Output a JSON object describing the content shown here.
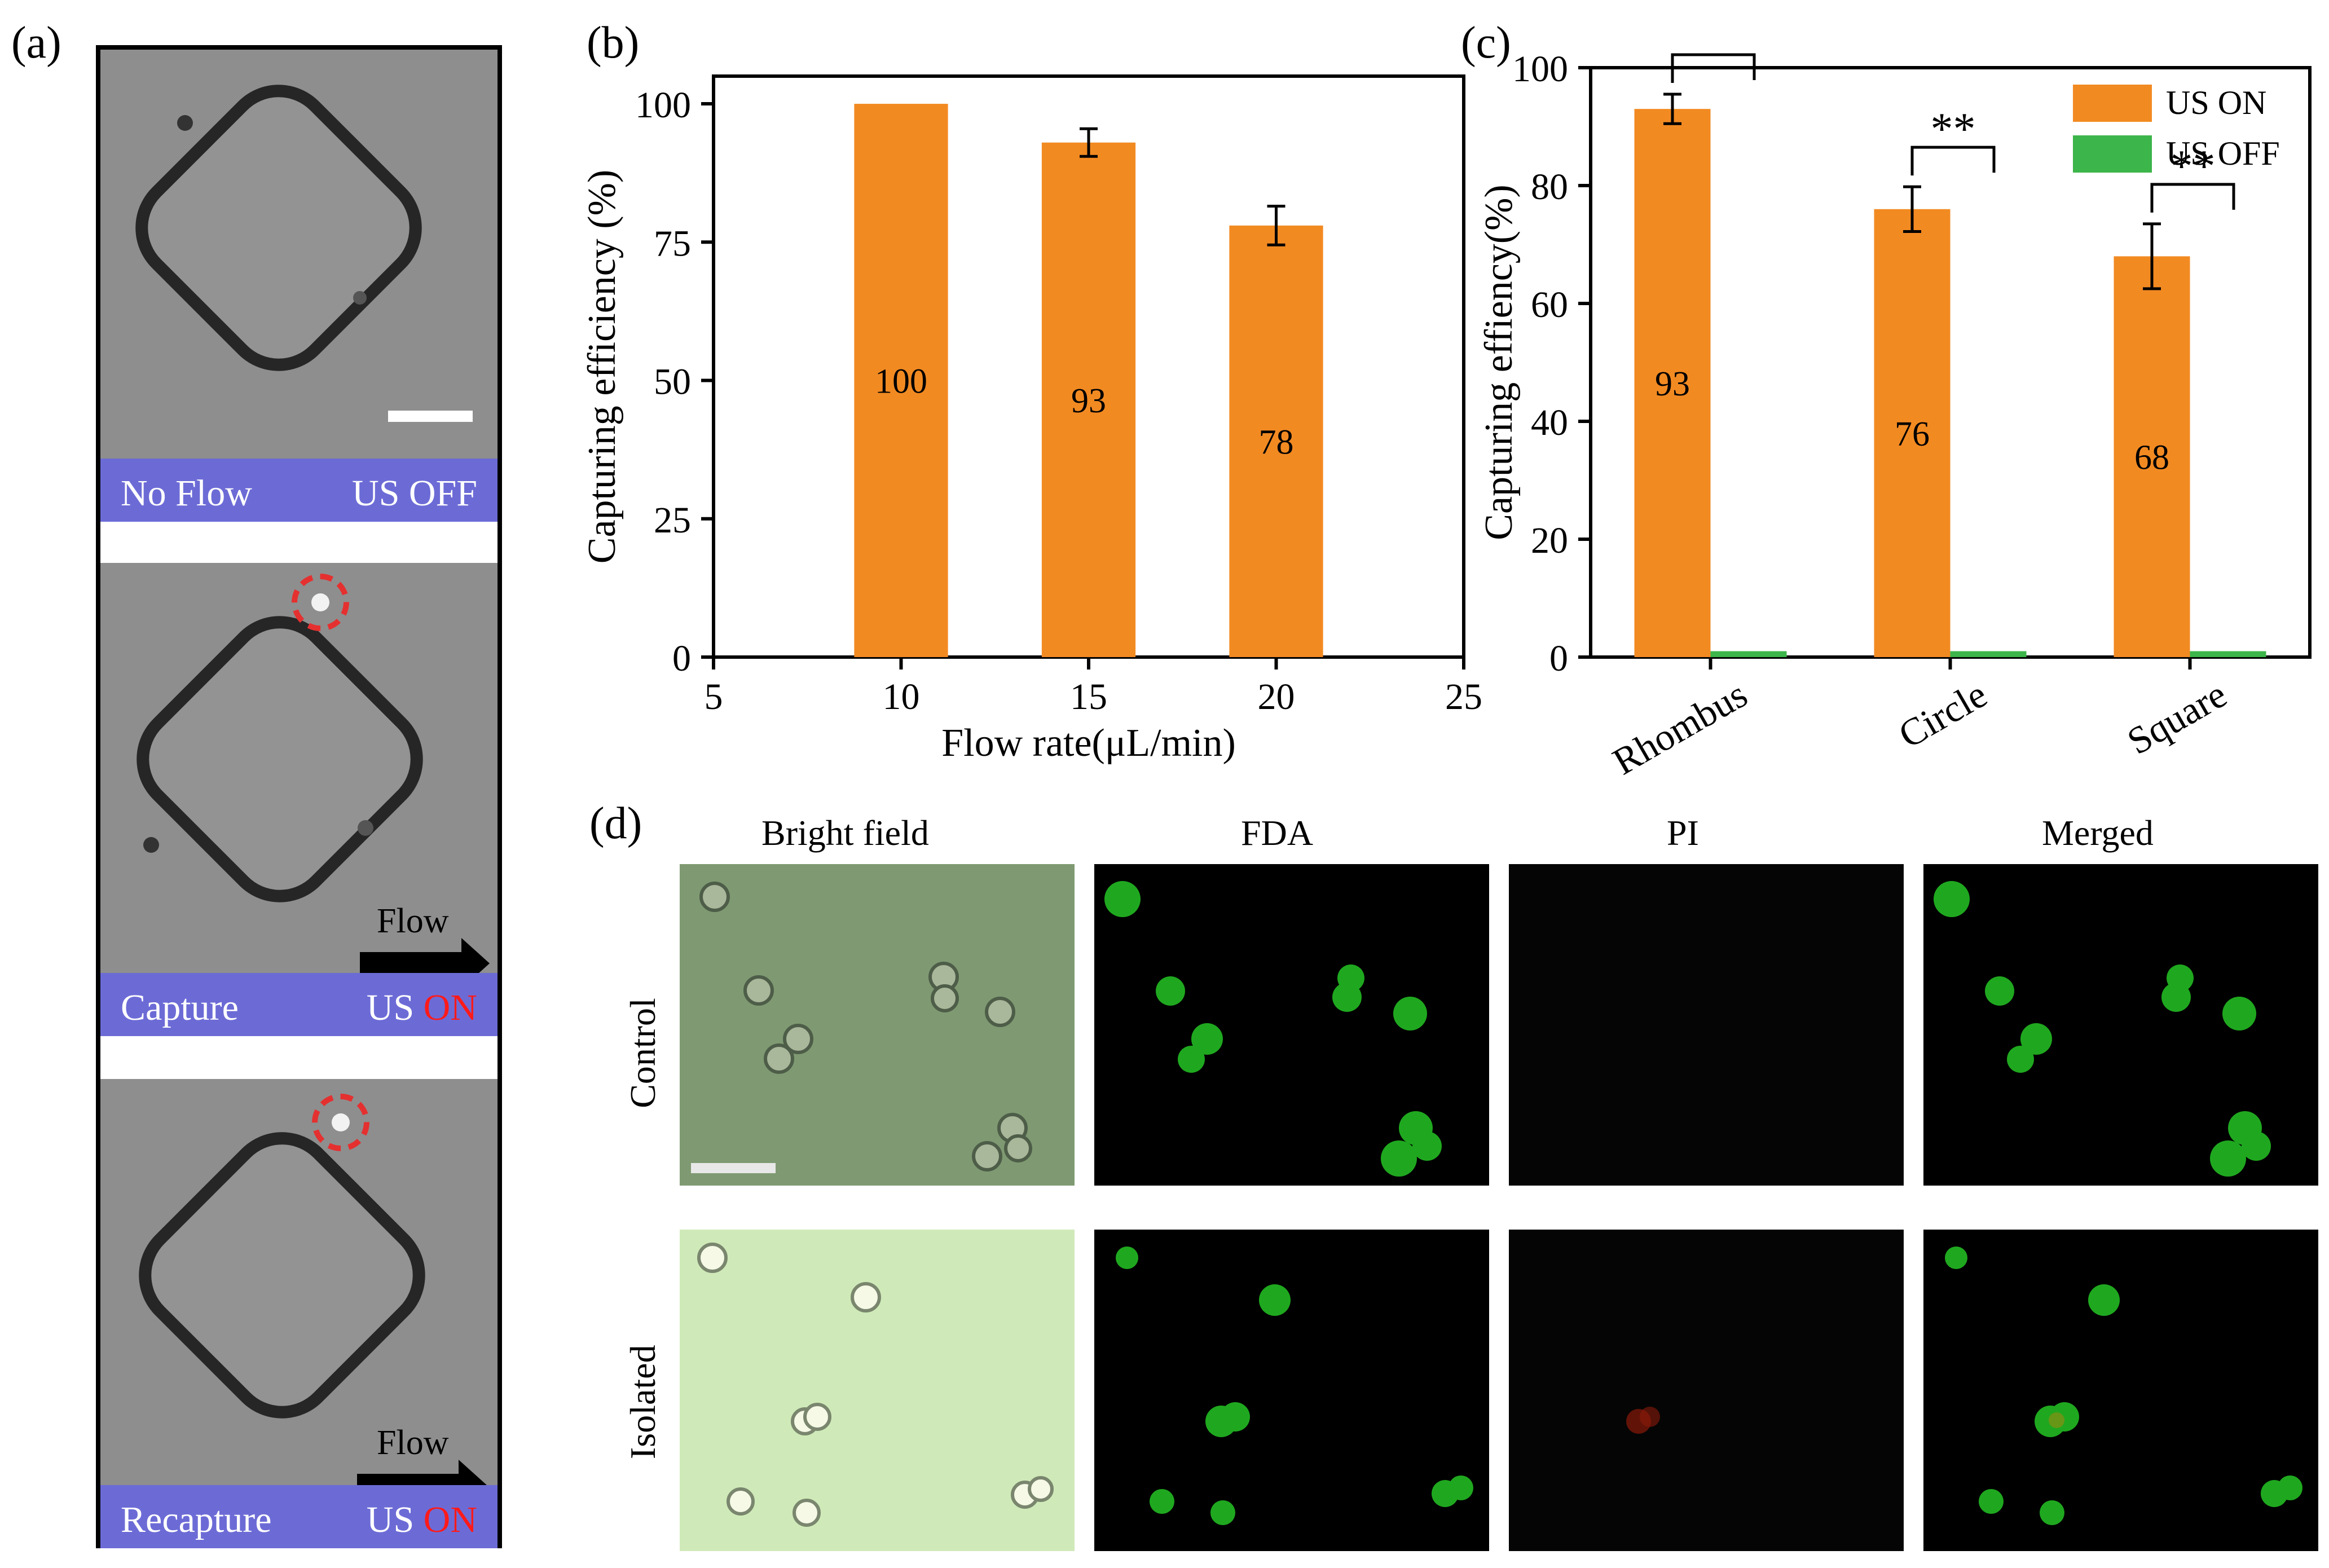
{
  "panel_labels": {
    "a": "(a)",
    "b": "(b)",
    "c": "(c)",
    "d": "(d)"
  },
  "panel_a": {
    "frames": [
      {
        "left": "No Flow",
        "us": "US",
        "state": "OFF",
        "flow_label": ""
      },
      {
        "left": "Capture",
        "us": "US",
        "state": "ON",
        "flow_label": "Flow"
      },
      {
        "left": "Recapture",
        "us": "US",
        "state": "ON",
        "flow_label": "Flow"
      }
    ],
    "colors": {
      "bar": "#6c6bd6",
      "on": "#ff1a1a",
      "off": "#ffffff",
      "marker": "#e53030"
    }
  },
  "chart_data": [
    {
      "type": "bar",
      "panel": "(b)",
      "xlabel": "Flow rate(μL/min)",
      "ylabel": "Capturing efficiency (%)",
      "x": [
        10,
        15,
        20
      ],
      "values": [
        100,
        93,
        78
      ],
      "errors": [
        0,
        2.5,
        3.5
      ],
      "data_labels": [
        "100",
        "93",
        "78"
      ],
      "xlim": [
        5,
        25
      ],
      "xticks": [
        "5",
        "10",
        "15",
        "20",
        "25"
      ],
      "ylim": [
        0,
        105
      ],
      "yticks": [
        "0",
        "25",
        "50",
        "75",
        "100"
      ],
      "color": "#f28a22",
      "grid": false
    },
    {
      "type": "bar",
      "panel": "(c)",
      "ylabel": "Capturing effiency(%)",
      "categories": [
        "Rhombus",
        "Circle",
        "Square"
      ],
      "series": [
        {
          "name": "US ON",
          "values": [
            93,
            76,
            68
          ],
          "errors": [
            2.5,
            3.8,
            5.5
          ],
          "color": "#f28a22"
        },
        {
          "name": "US OFF",
          "values": [
            1,
            1,
            1
          ],
          "color": "#3cb54a"
        }
      ],
      "data_labels": [
        "93",
        "76",
        "68"
      ],
      "significance": [
        "**",
        "**",
        "**"
      ],
      "ylim": [
        0,
        100
      ],
      "yticks": [
        "0",
        "20",
        "40",
        "60",
        "80",
        "100"
      ],
      "legend": "top-right",
      "grid": false
    }
  ],
  "panel_d": {
    "columns": [
      "Bright field",
      "FDA",
      "PI",
      "Merged"
    ],
    "rows": [
      "Control",
      "Isolated"
    ],
    "colors": {
      "bf_control": "#7f9a72",
      "bf_isolated": "#cfeab8",
      "green_cell": "#1fa81f",
      "dark": "#000000",
      "red_cell": "#8a1a0a"
    }
  }
}
